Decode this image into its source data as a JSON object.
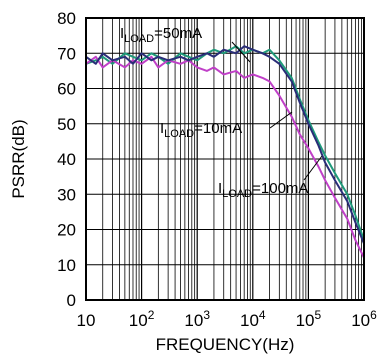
{
  "chart_data": {
    "type": "line",
    "title": "",
    "xlabel": "FREQUENCY(Hz)",
    "ylabel": "PSRR(dB)",
    "x_scale": "log",
    "xlim": [
      10,
      1000000
    ],
    "ylim": [
      0,
      80
    ],
    "grid": true,
    "x_ticks": [
      {
        "value": 10,
        "base": "10",
        "exp": ""
      },
      {
        "value": 100,
        "base": "10",
        "exp": "2"
      },
      {
        "value": 1000,
        "base": "10",
        "exp": "3"
      },
      {
        "value": 10000,
        "base": "10",
        "exp": "4"
      },
      {
        "value": 100000,
        "base": "10",
        "exp": "5"
      },
      {
        "value": 1000000,
        "base": "10",
        "exp": "6"
      }
    ],
    "y_ticks": [
      0,
      10,
      20,
      30,
      40,
      50,
      60,
      70,
      80
    ],
    "series": [
      {
        "name": "I_LOAD=50mA",
        "color": "#1f9a7a",
        "x": [
          10,
          15,
          20,
          30,
          50,
          70,
          100,
          150,
          200,
          300,
          500,
          700,
          1000,
          1500,
          2000,
          3000,
          5000,
          7000,
          10000,
          15000,
          20000,
          30000,
          50000,
          70000,
          100000,
          150000,
          200000,
          300000,
          500000,
          700000,
          1000000
        ],
        "y": [
          67,
          68,
          69,
          67,
          70,
          69,
          68,
          70,
          69,
          67,
          70,
          69,
          68,
          70,
          71,
          70,
          72,
          70,
          71,
          70,
          71,
          68,
          63,
          57,
          51,
          45,
          41,
          36,
          30,
          24,
          17
        ]
      },
      {
        "name": "I_LOAD=10mA",
        "color": "#c040c8",
        "x": [
          10,
          15,
          20,
          30,
          50,
          70,
          100,
          150,
          200,
          300,
          500,
          700,
          1000,
          1500,
          2000,
          3000,
          5000,
          7000,
          10000,
          15000,
          20000,
          30000,
          50000,
          70000,
          100000,
          150000,
          200000,
          300000,
          500000,
          700000,
          1000000
        ],
        "y": [
          67,
          69,
          66,
          68,
          66,
          68,
          67,
          69,
          66,
          68,
          67,
          68,
          66,
          65,
          66,
          64,
          65,
          63,
          64,
          63,
          62,
          58,
          52,
          47,
          43,
          38,
          34,
          29,
          23,
          17,
          12
        ]
      },
      {
        "name": "I_LOAD=100mA",
        "color": "#2a2d78",
        "x": [
          10,
          15,
          20,
          30,
          50,
          70,
          100,
          150,
          200,
          300,
          500,
          700,
          1000,
          1500,
          2000,
          3000,
          5000,
          7000,
          10000,
          15000,
          20000,
          30000,
          50000,
          70000,
          100000,
          150000,
          200000,
          300000,
          500000,
          700000,
          1000000
        ],
        "y": [
          69,
          67,
          70,
          68,
          69,
          67,
          70,
          68,
          69,
          68,
          69,
          68,
          69,
          70,
          69,
          71,
          70,
          72,
          71,
          70,
          69,
          67,
          62,
          56,
          50,
          44,
          39,
          34,
          28,
          22,
          16
        ]
      }
    ],
    "annotations": [
      {
        "base": "I",
        "sub": "LOAD",
        "rest": "=50mA",
        "series": 0
      },
      {
        "base": "I",
        "sub": "LOAD",
        "rest": "=10mA",
        "series": 1
      },
      {
        "base": "I",
        "sub": "LOAD",
        "rest": "=100mA",
        "series": 2
      }
    ]
  }
}
